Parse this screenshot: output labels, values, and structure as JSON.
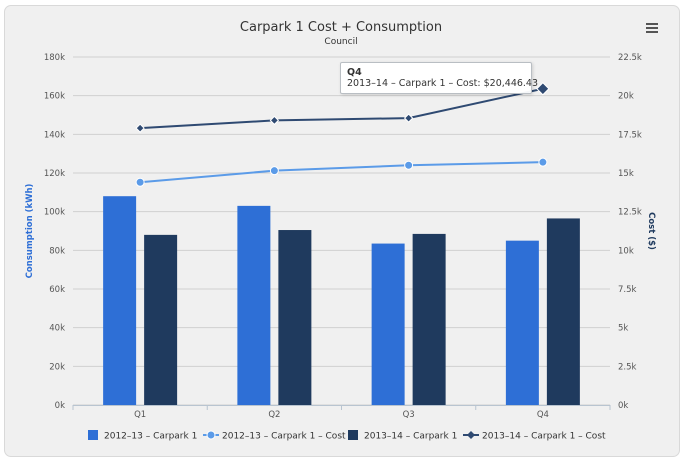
{
  "colors": {
    "bar_2012": "#2e6fd6",
    "bar_2013": "#1f3a5e",
    "line_2012": "#5b9be8",
    "line_2013": "#2f4a72",
    "axis_left_title": "#2e6fd6",
    "axis_right_title": "#1f3a5e"
  },
  "menu": {
    "icon": "hamburger-menu-icon"
  },
  "tooltip": {
    "title": "Q4",
    "line": "2013–14 – Carpark 1 – Cost: $20,446.43"
  },
  "chart_data": {
    "type": "bar",
    "title": "Carpark 1 Cost + Consumption",
    "subtitle": "Council",
    "categories": [
      "Q1",
      "Q2",
      "Q3",
      "Q4"
    ],
    "ylabel": "Consumption (kWh)",
    "ylabel_right": "Cost ($)",
    "ylim": [
      0,
      180000
    ],
    "ylim_right": [
      0,
      22500
    ],
    "yticks_left": [
      "0k",
      "20k",
      "40k",
      "60k",
      "80k",
      "100k",
      "120k",
      "140k",
      "160k",
      "180k"
    ],
    "yticks_right": [
      "0k",
      "2.5k",
      "5k",
      "7.5k",
      "10k",
      "12.5k",
      "15k",
      "17.5k",
      "20k",
      "22.5k"
    ],
    "grid": true,
    "legend_position": "bottom",
    "series": [
      {
        "name": "2012–13 – Carpark 1",
        "kind": "bar",
        "axis": "left",
        "values": [
          108000,
          103000,
          83500,
          85000
        ]
      },
      {
        "name": "2012–13 – Carpark 1 – Cost",
        "kind": "line",
        "axis": "right",
        "marker": "circle",
        "values": [
          14400,
          15150,
          15500,
          15700
        ]
      },
      {
        "name": "2013–14 – Carpark 1",
        "kind": "bar",
        "axis": "left",
        "values": [
          88000,
          90500,
          88500,
          96500
        ]
      },
      {
        "name": "2013–14 – Carpark 1 – Cost",
        "kind": "line",
        "axis": "right",
        "marker": "diamond",
        "values": [
          17900,
          18400,
          18550,
          20446.43
        ]
      }
    ]
  }
}
